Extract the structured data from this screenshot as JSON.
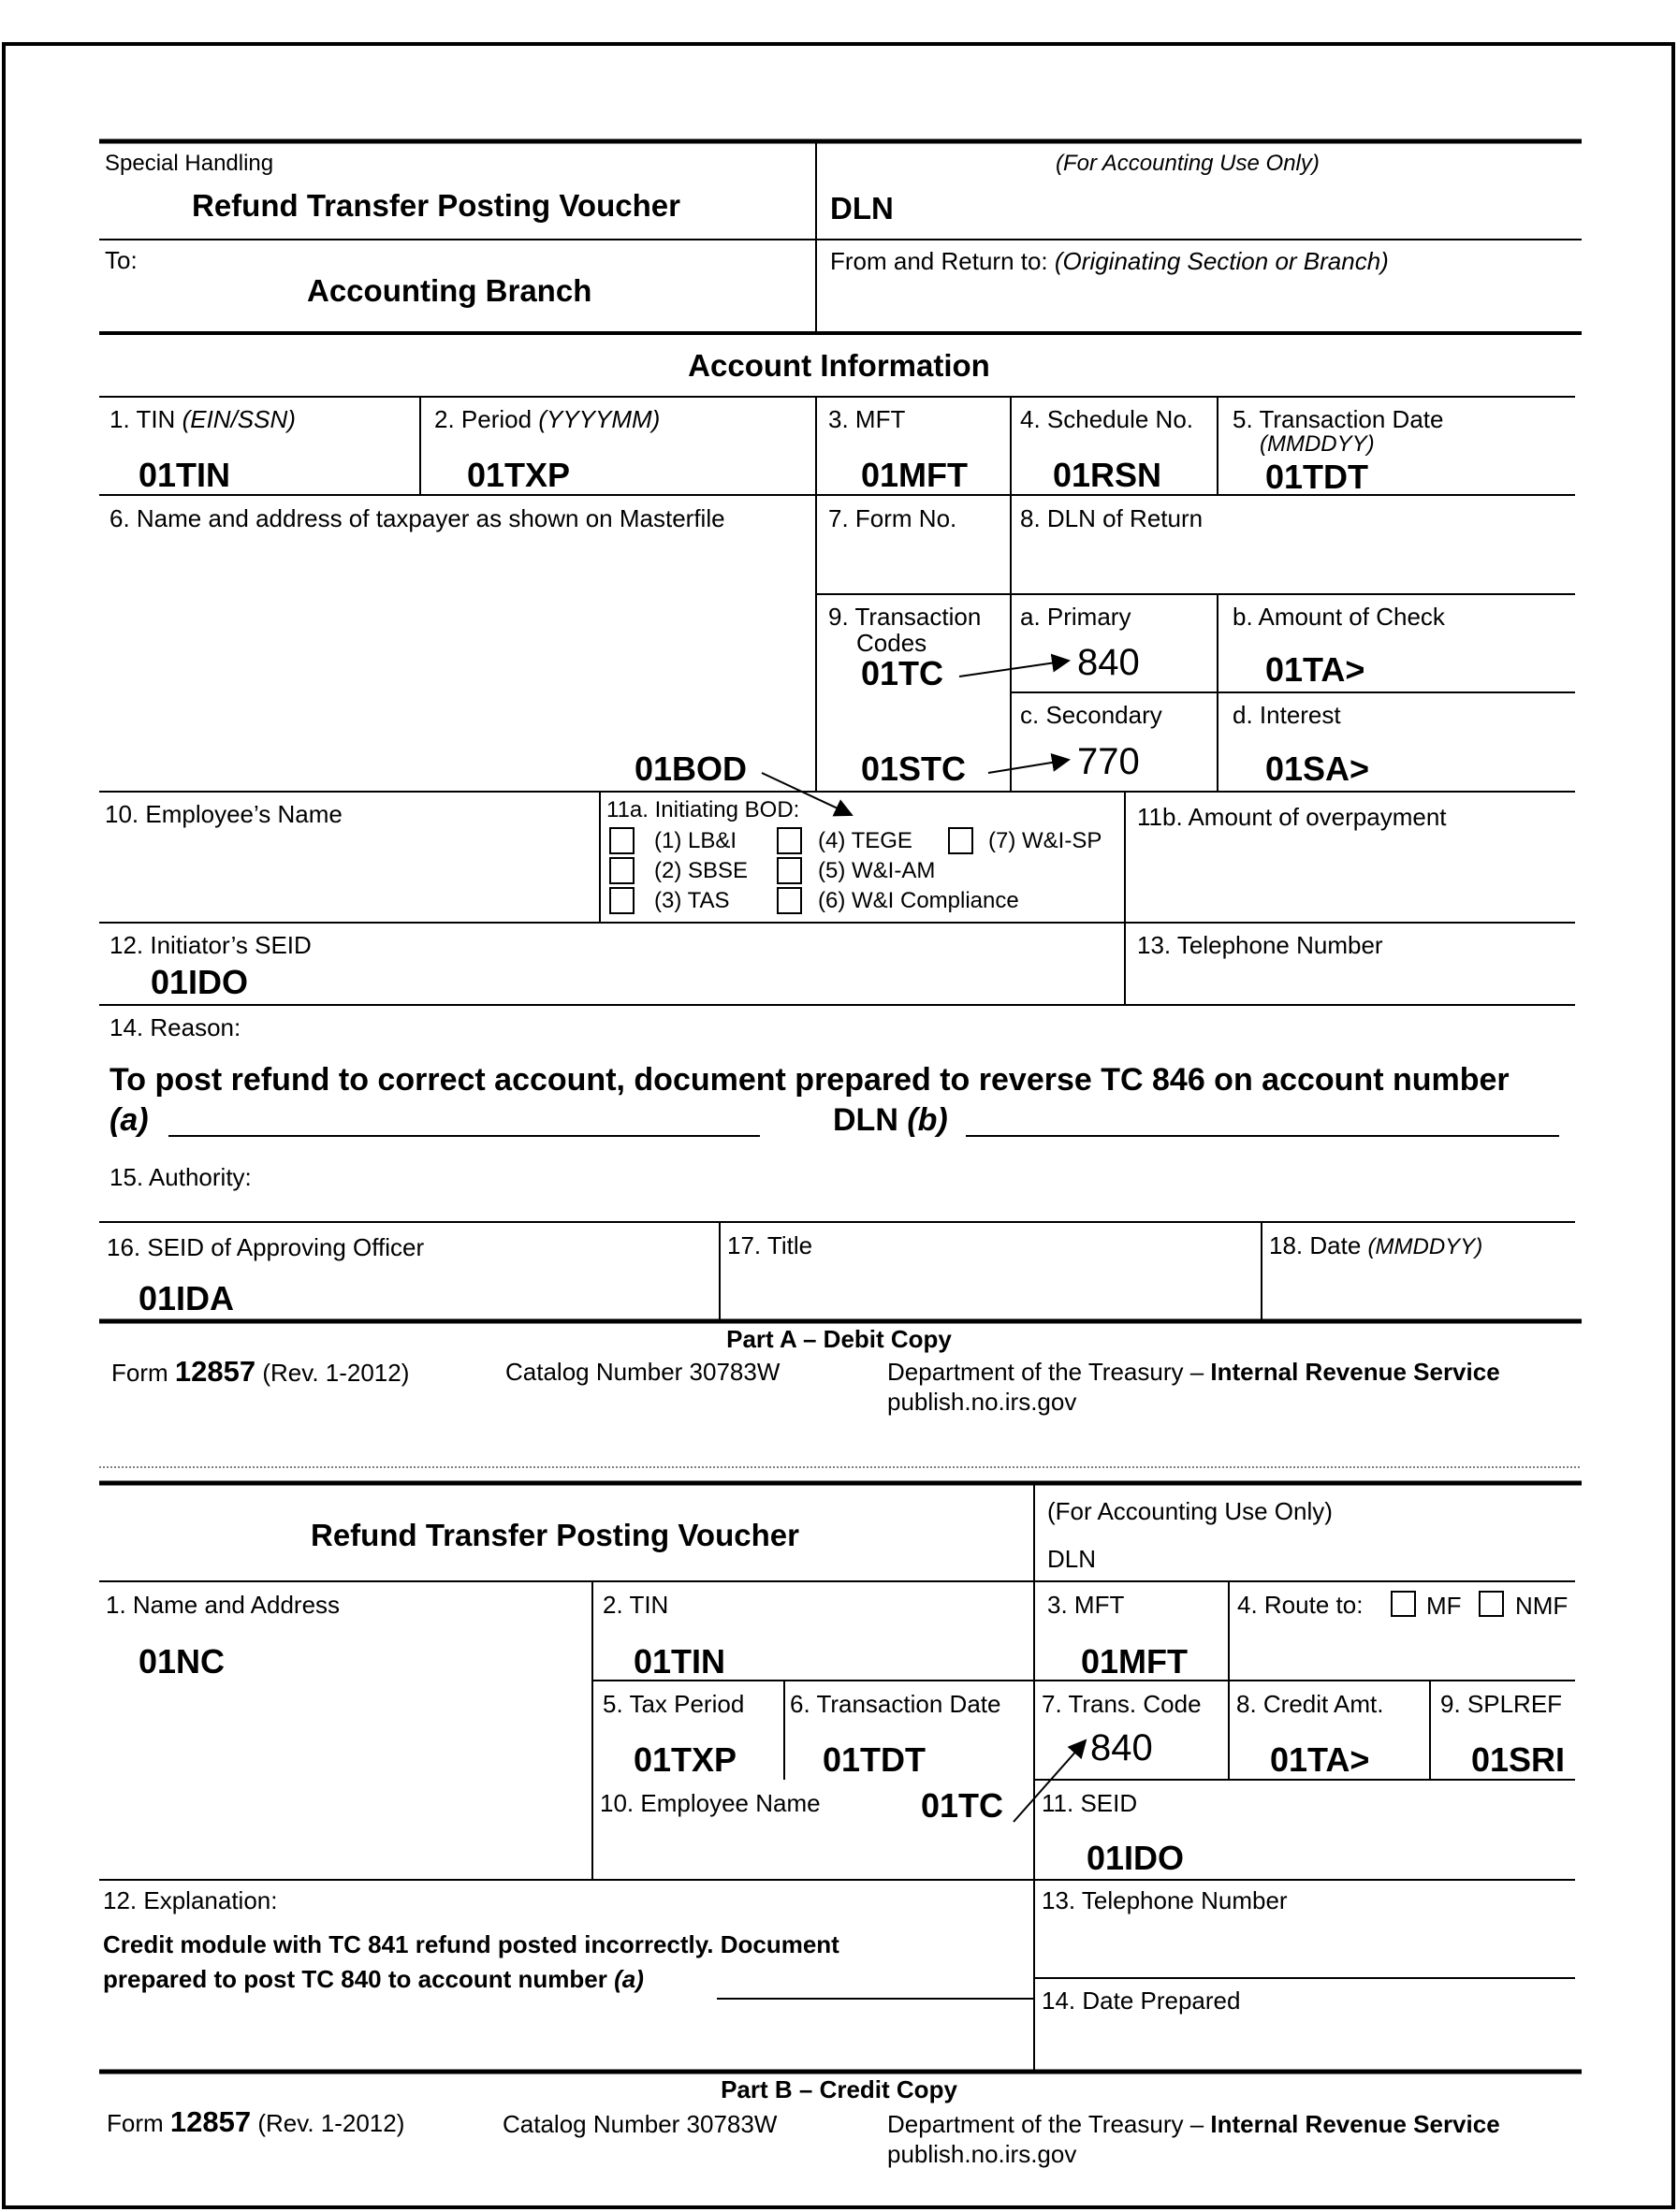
{
  "partA": {
    "special_handling": "Special Handling",
    "title": "Refund Transfer Posting Voucher",
    "accounting_use": "(For Accounting Use Only)",
    "dln": "DLN",
    "to_label": "To:",
    "to_value": "Accounting Branch",
    "from_label": "From and Return to:",
    "from_hint": "(Originating Section or Branch)",
    "section_title": "Account Information",
    "f1": "1. TIN",
    "f1_hint": "(EIN/SSN)",
    "f1_value": "01TIN",
    "f2": "2. Period",
    "f2_hint": "(YYYYMM)",
    "f2_value": "01TXP",
    "f3": "3. MFT",
    "f3_value": "01MFT",
    "f4": "4. Schedule No.",
    "f4_value": "01RSN",
    "f5": "5. Transaction Date",
    "f5_hint": "(MMDDYY)",
    "f5_value": "01TDT",
    "f6": "6. Name and address of taxpayer as shown on Masterfile",
    "f7": "7. Form No.",
    "f8": "8. DLN of Return",
    "f9a": "9. Transaction",
    "f9b": "Codes",
    "f9_primary": "a. Primary",
    "f9_tc": "01TC",
    "primary_value": "840",
    "f9_check": "b. Amount of Check",
    "check_value": "01TA>",
    "f9_secondary": "c. Secondary",
    "f9_stc": "01STC",
    "secondary_value": "770",
    "f9_interest": "d. Interest",
    "interest_value": "01SA>",
    "bod_code": "01BOD",
    "f10": "10. Employee’s Name",
    "f11a": "11a. Initiating BOD:",
    "bod_options": [
      "(1) LB&I",
      "(2) SBSE",
      "(3) TAS",
      "(4) TEGE",
      "(5) W&I-AM",
      "(6) W&I Compliance",
      "(7) W&I-SP"
    ],
    "f11b": "11b. Amount of overpayment",
    "f12": "12. Initiator’s SEID",
    "f12_value": "01IDO",
    "f13": "13. Telephone Number",
    "f14": "14. Reason:",
    "reason": "To post refund to correct account, document prepared to reverse TC 846 on account number",
    "reason_a": "(a)",
    "reason_dln": "DLN",
    "reason_b": "(b)",
    "f15": "15. Authority:",
    "f16": "16. SEID of Approving Officer",
    "f16_value": "01IDA",
    "f17": "17. Title",
    "f18": "18. Date",
    "f18_hint": "(MMDDYY)",
    "part": "Part A – Debit Copy"
  },
  "footer": {
    "form_prefix": "Form",
    "form_number": "12857",
    "rev": "(Rev. 1-2012)",
    "catalog": "Catalog Number 30783W",
    "dept": "Department of the Treasury –",
    "irs": "Internal Revenue Service",
    "site": "publish.no.irs.gov"
  },
  "partB": {
    "title": "Refund Transfer Posting Voucher",
    "accounting_use": "(For Accounting Use Only)",
    "dln": "DLN",
    "f1": "1. Name and Address",
    "f1_value": "01NC",
    "f2": "2. TIN",
    "f2_value": "01TIN",
    "f3": "3. MFT",
    "f3_value": "01MFT",
    "f4": "4. Route to:",
    "mf": "MF",
    "nmf": "NMF",
    "f5": "5. Tax Period",
    "f5_value": "01TXP",
    "f6": "6. Transaction Date",
    "f6_value": "01TDT",
    "f7": "7. Trans. Code",
    "f7_value": "840",
    "f8": "8. Credit Amt.",
    "f8_value": "01TA>",
    "f9": "9. SPLREF",
    "f9_value": "01SRI",
    "f10": "10. Employee Name",
    "tc": "01TC",
    "f11": "11. SEID",
    "f11_value": "01IDO",
    "f12": "12. Explanation:",
    "expl1": "Credit module with TC 841 refund posted incorrectly. Document",
    "expl2": "prepared to post TC 840 to account number",
    "expl_a": "(a)",
    "f13": "13. Telephone Number",
    "f14": "14. Date Prepared",
    "part": "Part B – Credit Copy"
  }
}
